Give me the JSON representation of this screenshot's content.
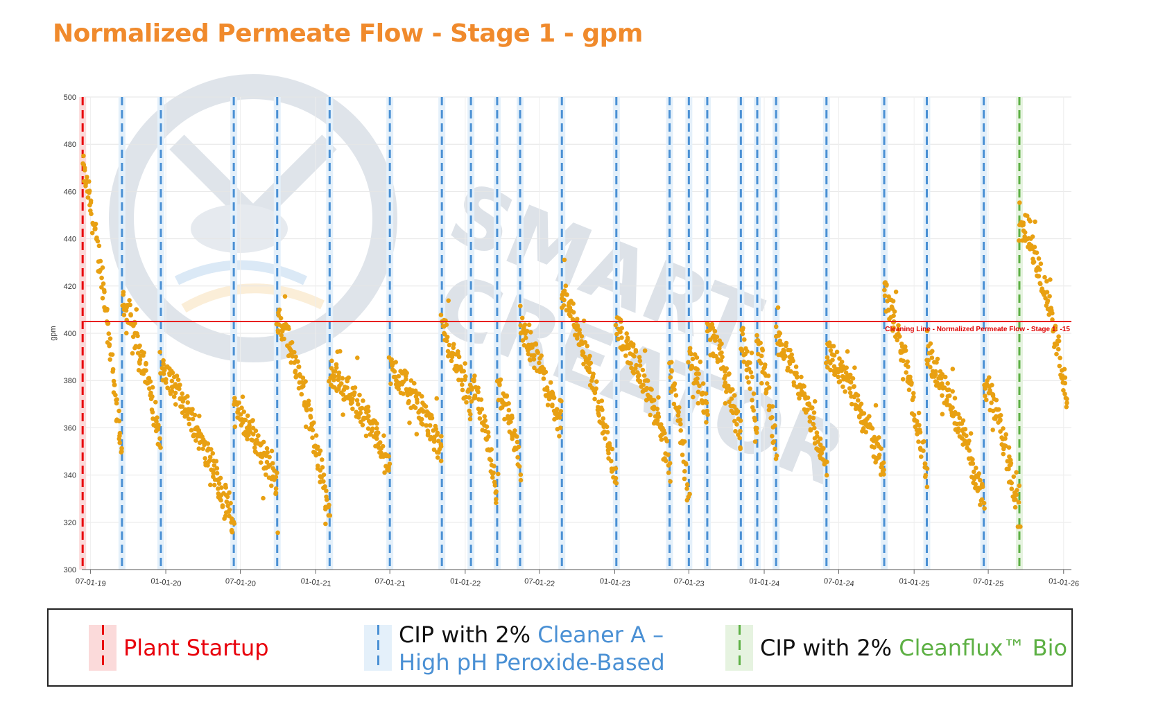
{
  "title": "Normalized Permeate Flow - Stage 1 - gpm",
  "colors": {
    "title": "#f08a2c",
    "points": "#e8a012",
    "startup": "#e8000b",
    "cip_a": "#4a90d4",
    "cip_bio": "#5db044",
    "cleaning_line": "#e82020"
  },
  "chart_data": {
    "type": "scatter",
    "ylabel": "gpm",
    "ylim": [
      300,
      500
    ],
    "yticks": [
      300,
      320,
      340,
      360,
      380,
      400,
      420,
      440,
      460,
      480,
      500
    ],
    "xlim": [
      "2019-06-10",
      "2026-01-20"
    ],
    "xticks": [
      {
        "date": "2019-07-01",
        "label": "07-01-19"
      },
      {
        "date": "2020-01-01",
        "label": "01-01-20"
      },
      {
        "date": "2020-07-01",
        "label": "07-01-20"
      },
      {
        "date": "2021-01-01",
        "label": "01-01-21"
      },
      {
        "date": "2021-07-01",
        "label": "07-01-21"
      },
      {
        "date": "2022-01-01",
        "label": "01-01-22"
      },
      {
        "date": "2022-07-01",
        "label": "07-01-22"
      },
      {
        "date": "2023-01-01",
        "label": "01-01-23"
      },
      {
        "date": "2023-07-01",
        "label": "07-01-23"
      },
      {
        "date": "2024-01-01",
        "label": "01-01-24"
      },
      {
        "date": "2024-07-01",
        "label": "07-01-24"
      },
      {
        "date": "2025-01-01",
        "label": "01-01-25"
      },
      {
        "date": "2025-07-01",
        "label": "07-01-25"
      },
      {
        "date": "2026-01-01",
        "label": "01-01-26"
      }
    ],
    "grid": true,
    "reference_line": {
      "y": 405,
      "label": "Cleaning Line - Normalized Permeate Flow - Stage 1: -15"
    },
    "plant_startup": "2019-06-12",
    "cip_cleaner_a": [
      "2019-09-16",
      "2019-12-20",
      "2020-06-15",
      "2020-09-29",
      "2021-02-04",
      "2021-07-01",
      "2021-11-05",
      "2022-01-15",
      "2022-03-20",
      "2022-05-15",
      "2022-08-25",
      "2023-01-05",
      "2023-05-15",
      "2023-07-01",
      "2023-08-15",
      "2023-11-05",
      "2023-12-15",
      "2024-01-30",
      "2024-06-01",
      "2024-10-20",
      "2025-02-01",
      "2025-06-20"
    ],
    "cip_cleanflux_bio": "2025-09-15",
    "series": [
      {
        "segments": [
          {
            "start": "2019-06-12",
            "end": "2019-09-16",
            "y0": 470,
            "y1": 345
          },
          {
            "start": "2019-09-16",
            "end": "2019-12-20",
            "y0": 415,
            "y1": 352
          },
          {
            "start": "2019-12-20",
            "end": "2020-06-15",
            "y0": 385,
            "y1": 318
          },
          {
            "start": "2020-06-15",
            "end": "2020-09-29",
            "y0": 368,
            "y1": 335
          },
          {
            "start": "2020-09-29",
            "end": "2021-02-04",
            "y0": 408,
            "y1": 322
          },
          {
            "start": "2021-02-04",
            "end": "2021-07-01",
            "y0": 384,
            "y1": 345
          },
          {
            "start": "2021-07-01",
            "end": "2021-11-05",
            "y0": 385,
            "y1": 350
          },
          {
            "start": "2021-11-05",
            "end": "2022-01-15",
            "y0": 402,
            "y1": 365
          },
          {
            "start": "2022-01-15",
            "end": "2022-03-20",
            "y0": 382,
            "y1": 330
          },
          {
            "start": "2022-03-20",
            "end": "2022-05-15",
            "y0": 378,
            "y1": 342
          },
          {
            "start": "2022-05-15",
            "end": "2022-08-25",
            "y0": 402,
            "y1": 357
          },
          {
            "start": "2022-08-25",
            "end": "2023-01-05",
            "y0": 418,
            "y1": 335
          },
          {
            "start": "2023-01-05",
            "end": "2023-05-15",
            "y0": 402,
            "y1": 345
          },
          {
            "start": "2023-05-15",
            "end": "2023-07-01",
            "y0": 385,
            "y1": 330
          },
          {
            "start": "2023-07-01",
            "end": "2023-08-15",
            "y0": 392,
            "y1": 365
          },
          {
            "start": "2023-08-15",
            "end": "2023-11-05",
            "y0": 403,
            "y1": 355
          },
          {
            "start": "2023-11-05",
            "end": "2023-12-15",
            "y0": 400,
            "y1": 358
          },
          {
            "start": "2023-12-15",
            "end": "2024-01-30",
            "y0": 398,
            "y1": 350
          },
          {
            "start": "2024-01-30",
            "end": "2024-06-01",
            "y0": 398,
            "y1": 342
          },
          {
            "start": "2024-06-01",
            "end": "2024-10-20",
            "y0": 392,
            "y1": 342
          },
          {
            "start": "2024-10-20",
            "end": "2025-02-01",
            "y0": 418,
            "y1": 338
          },
          {
            "start": "2025-02-01",
            "end": "2025-06-20",
            "y0": 390,
            "y1": 328
          },
          {
            "start": "2025-06-20",
            "end": "2025-09-15",
            "y0": 380,
            "y1": 322
          },
          {
            "start": "2025-09-15",
            "end": "2026-01-10",
            "y0": 452,
            "y1": 372
          }
        ]
      }
    ]
  },
  "legend": {
    "startup": {
      "label": "Plant Startup"
    },
    "cip_a": {
      "prefix": "CIP with 2% ",
      "colored": "Cleaner A –",
      "line2": "High pH Peroxide-Based"
    },
    "cip_bio": {
      "prefix": "CIP with 2% ",
      "colored": "Cleanflux™ Bio"
    }
  }
}
